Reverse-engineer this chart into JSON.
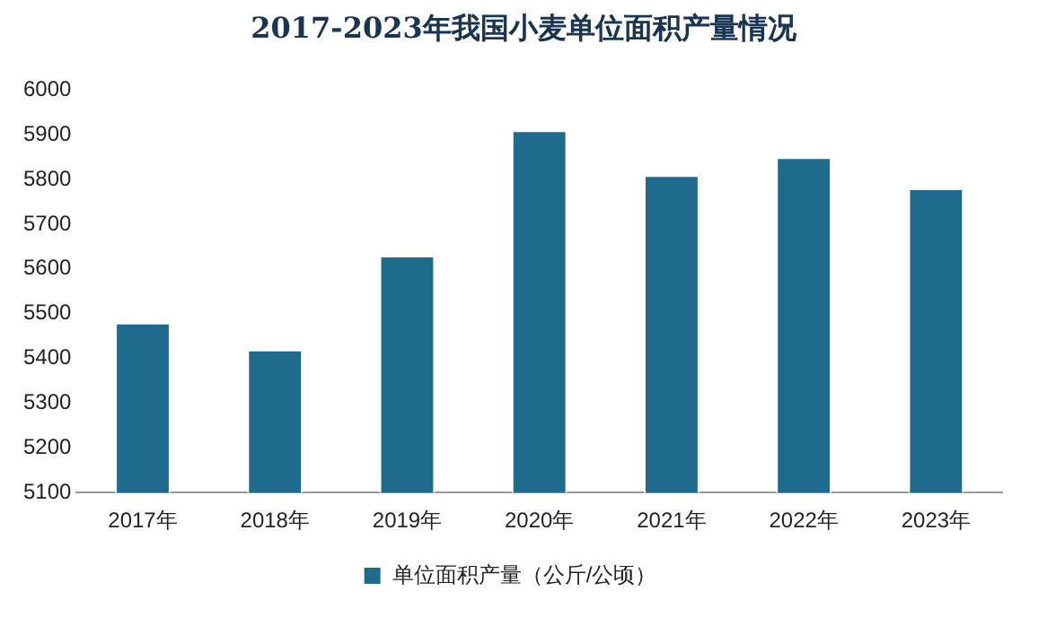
{
  "chart_data": {
    "type": "bar",
    "title": "2017-2023年我国小麦单位面积产量情况",
    "categories": [
      "2017年",
      "2018年",
      "2019年",
      "2020年",
      "2021年",
      "2022年",
      "2023年"
    ],
    "series": [
      {
        "name": "单位面积产量（公斤/公顷）",
        "color": "#1f6b8e",
        "values": [
          5480,
          5420,
          5630,
          5910,
          5810,
          5850,
          5780
        ]
      }
    ],
    "ylim": [
      5100,
      6000
    ],
    "yticks": [
      5100,
      5200,
      5300,
      5400,
      5500,
      5600,
      5700,
      5800,
      5900,
      6000
    ],
    "grid": false,
    "legend": "bottom"
  }
}
